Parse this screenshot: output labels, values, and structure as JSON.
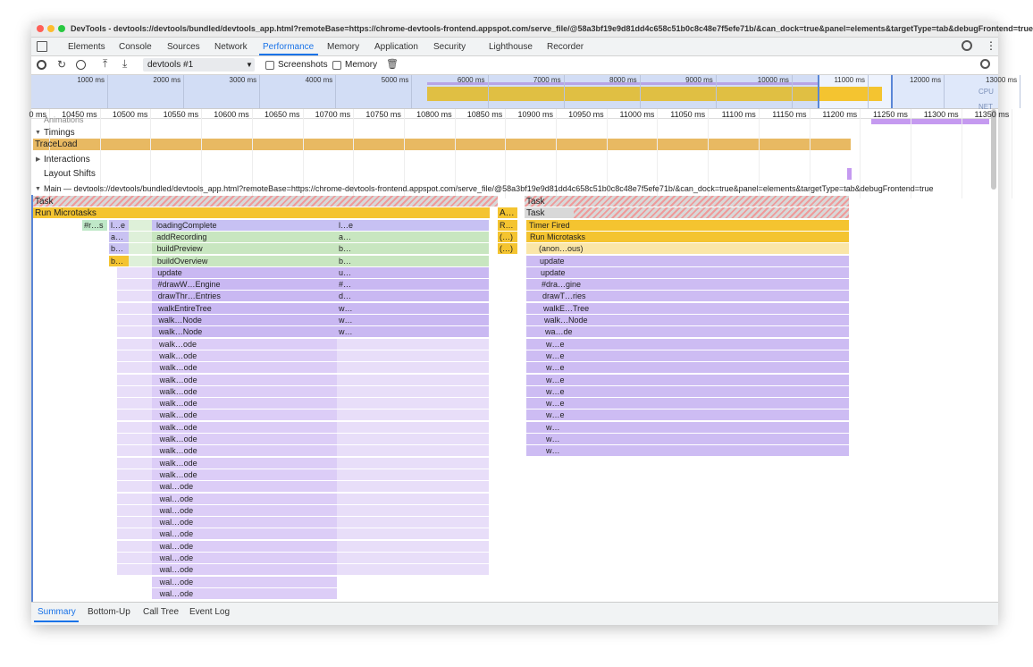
{
  "window": {
    "title": "DevTools - devtools://devtools/bundled/devtools_app.html?remoteBase=https://chrome-devtools-frontend.appspot.com/serve_file/@58a3bf19e9d81dd4c658c51b0c8c48e7f5efe71b/&can_dock=true&panel=elements&targetType=tab&debugFrontend=true"
  },
  "tabs": [
    "Elements",
    "Console",
    "Sources",
    "Network",
    "Performance",
    "Memory",
    "Application",
    "Security",
    "Lighthouse",
    "Recorder"
  ],
  "toolbar": {
    "profile": "devtools #1",
    "checkboxes": [
      "Screenshots",
      "Memory"
    ]
  },
  "overview": {
    "ticks": [
      "1000 ms",
      "2000 ms",
      "3000 ms",
      "4000 ms",
      "5000 ms",
      "6000 ms",
      "7000 ms",
      "8000 ms",
      "9000 ms",
      "10000 ms",
      "11000 ms",
      "12000 ms",
      "13000 ms"
    ],
    "labels": [
      "CPU",
      "NET"
    ]
  },
  "ruler": {
    "ticks": [
      "0 ms",
      "10450 ms",
      "10500 ms",
      "10550 ms",
      "10600 ms",
      "10650 ms",
      "10700 ms",
      "10750 ms",
      "10800 ms",
      "10850 ms",
      "10900 ms",
      "10950 ms",
      "11000 ms",
      "11050 ms",
      "11100 ms",
      "11150 ms",
      "11200 ms",
      "11250 ms",
      "11300 ms",
      "11350 ms"
    ]
  },
  "tracks": {
    "animations": "Animations",
    "timings": "Timings",
    "traceload": "TraceLoad",
    "interactions": "Interactions",
    "layout_shifts": "Layout Shifts",
    "main": "Main — devtools://devtools/bundled/devtools_app.html?remoteBase=https://chrome-devtools-frontend.appspot.com/serve_file/@58a3bf19e9d81dd4c658c51b0c8c48e7f5efe71b/&can_dock=true&panel=elements&targetType=tab&debugFrontend=true"
  },
  "flame": {
    "top": [
      "Task",
      "Task",
      "Run Microtasks",
      "A…",
      "Task"
    ],
    "rows": [
      [
        "#r…s",
        "l…e",
        "loadingComplete",
        "l…e",
        "R…",
        "Timer Fired"
      ],
      [
        null,
        "a…",
        "addRecording",
        "a…",
        "(…)",
        "Run Microtasks"
      ],
      [
        null,
        "b…",
        "buildPreview",
        "b…",
        "(…)",
        "(anon…ous)"
      ],
      [
        null,
        "b…",
        "buildOverview",
        "b…",
        null,
        "update"
      ],
      [
        null,
        null,
        "update",
        "u…",
        null,
        "update"
      ],
      [
        null,
        null,
        "#drawW…Engine",
        "#…",
        null,
        "#dra…gine"
      ],
      [
        null,
        null,
        "drawThr…Entries",
        "d…",
        null,
        "drawT…ries"
      ],
      [
        null,
        null,
        "walkEntireTree",
        "w…",
        null,
        "walkE…Tree"
      ],
      [
        null,
        null,
        "walk…Node",
        "w…",
        null,
        "walk…Node"
      ],
      [
        null,
        null,
        "walk…Node",
        "w…",
        null,
        "wa…de"
      ],
      [
        null,
        null,
        "walk…ode",
        null,
        null,
        "w…e"
      ],
      [
        null,
        null,
        "walk…ode",
        null,
        null,
        "w…e"
      ],
      [
        null,
        null,
        "walk…ode",
        null,
        null,
        "w…e"
      ],
      [
        null,
        null,
        "walk…ode",
        null,
        null,
        "w…e"
      ],
      [
        null,
        null,
        "walk…ode",
        null,
        null,
        "w…e"
      ],
      [
        null,
        null,
        "walk…ode",
        null,
        null,
        "w…e"
      ],
      [
        null,
        null,
        "walk…ode",
        null,
        null,
        "w…e"
      ],
      [
        null,
        null,
        "walk…ode",
        null,
        null,
        "w…"
      ],
      [
        null,
        null,
        "walk…ode",
        null,
        null,
        "w…"
      ],
      [
        null,
        null,
        "walk…ode",
        null,
        null,
        "w…"
      ],
      [
        null,
        null,
        "walk…ode",
        null,
        null,
        null
      ],
      [
        null,
        null,
        "walk…ode",
        null,
        null,
        null
      ],
      [
        null,
        null,
        "wal…ode",
        null,
        null,
        null
      ],
      [
        null,
        null,
        "wal…ode",
        null,
        null,
        null
      ],
      [
        null,
        null,
        "wal…ode",
        null,
        null,
        null
      ],
      [
        null,
        null,
        "wal…ode",
        null,
        null,
        null
      ],
      [
        null,
        null,
        "wal…ode",
        null,
        null,
        null
      ],
      [
        null,
        null,
        "wal…ode",
        null,
        null,
        null
      ],
      [
        null,
        null,
        "wal…ode",
        null,
        null,
        null
      ],
      [
        null,
        null,
        "wal…ode",
        null,
        null,
        null
      ],
      [
        null,
        null,
        "wal…ode",
        null,
        null,
        null
      ],
      [
        null,
        null,
        "wal…ode",
        null,
        null,
        null
      ]
    ]
  },
  "bottom_tabs": [
    "Summary",
    "Bottom-Up",
    "Call Tree",
    "Event Log"
  ]
}
